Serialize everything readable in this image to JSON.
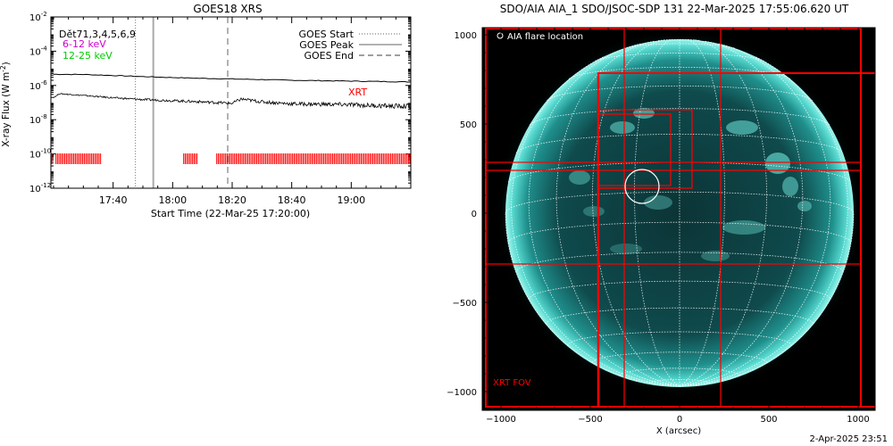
{
  "chart_data": [
    {
      "type": "line",
      "title": "GOES18 XRS",
      "ylabel": "X-ray Flux (W m",
      "ylabel_sup": "-2",
      "ylabel_tail": ")",
      "xlabel": "Start Time (22-Mar-25 17:20:00)",
      "x_ticks": [
        "17:40",
        "18:00",
        "18:20",
        "18:40",
        "19:00"
      ],
      "y_scale": "log",
      "y_ticks": [
        "10",
        "10",
        "10",
        "10",
        "10",
        "10"
      ],
      "y_tick_exps": [
        "-2",
        "-4",
        "-6",
        "-8",
        "-10",
        "-12"
      ],
      "legend_left": [
        {
          "label": "Dět71,3,4,5,6,9",
          "color": "#000000"
        },
        {
          "label": "6-12 keV",
          "color": "#cc00cc"
        },
        {
          "label": "12-25 keV",
          "color": "#00cc00"
        }
      ],
      "legend_right": [
        {
          "label": "GOES Start",
          "style": "dotted"
        },
        {
          "label": "GOES Peak",
          "style": "solid"
        },
        {
          "label": "GOES End",
          "style": "dashed"
        }
      ],
      "annotation": "XRT",
      "annotation_color": "#ff0000",
      "grid": false,
      "series": [
        {
          "values_desc": "long channel",
          "x_min": [
            0,
            10,
            20,
            30,
            40,
            50,
            60,
            70,
            80,
            90,
            100,
            110,
            120
          ],
          "values": [
            4.5e-06,
            4.4e-06,
            3.8e-06,
            3.3e-06,
            2.9e-06,
            2.6e-06,
            2.4e-06,
            2.2e-06,
            2e-06,
            1.9e-06,
            1.8e-06,
            1.7e-06,
            1.6e-06
          ]
        },
        {
          "values_desc": "short channel",
          "x_min": [
            0,
            2,
            10,
            20,
            30,
            40,
            50,
            60,
            63,
            70,
            80,
            90,
            100,
            110,
            120
          ],
          "values": [
            2e-07,
            3.3e-07,
            2.6e-07,
            1.9e-07,
            1.5e-07,
            1.3e-07,
            1.1e-07,
            9e-08,
            1.6e-07,
            1.1e-07,
            8.5e-08,
            8e-08,
            7.5e-08,
            6.5e-08,
            6e-08
          ]
        }
      ],
      "markers_min": {
        "start": 27.5,
        "peak": 33.5,
        "end": 58.5
      },
      "xrt_intervals_min": [
        [
          -1.5,
          -0.8
        ],
        [
          0.8,
          16.0
        ],
        [
          43.7,
          48.6
        ],
        [
          54.8,
          120.0
        ]
      ]
    },
    {
      "type": "heatmap",
      "title": "SDO/AIA AIA_1 SDO/JSOC-SDP 131 22-Mar-2025 17:55:06.620 UT",
      "xlabel": "X (arcsec)",
      "x_ticks": [
        -1000,
        -500,
        0,
        500,
        1000
      ],
      "y_ticks": [
        1000,
        500,
        0,
        -500,
        -1000
      ],
      "xlim": [
        -1100,
        1100
      ],
      "ylim": [
        -1100,
        1100
      ],
      "legend": "AIA flare location",
      "fov_label": "XRT FOV",
      "fov_color": "#ff0000",
      "footer": "2-Apr-2025 23:51"
    }
  ]
}
